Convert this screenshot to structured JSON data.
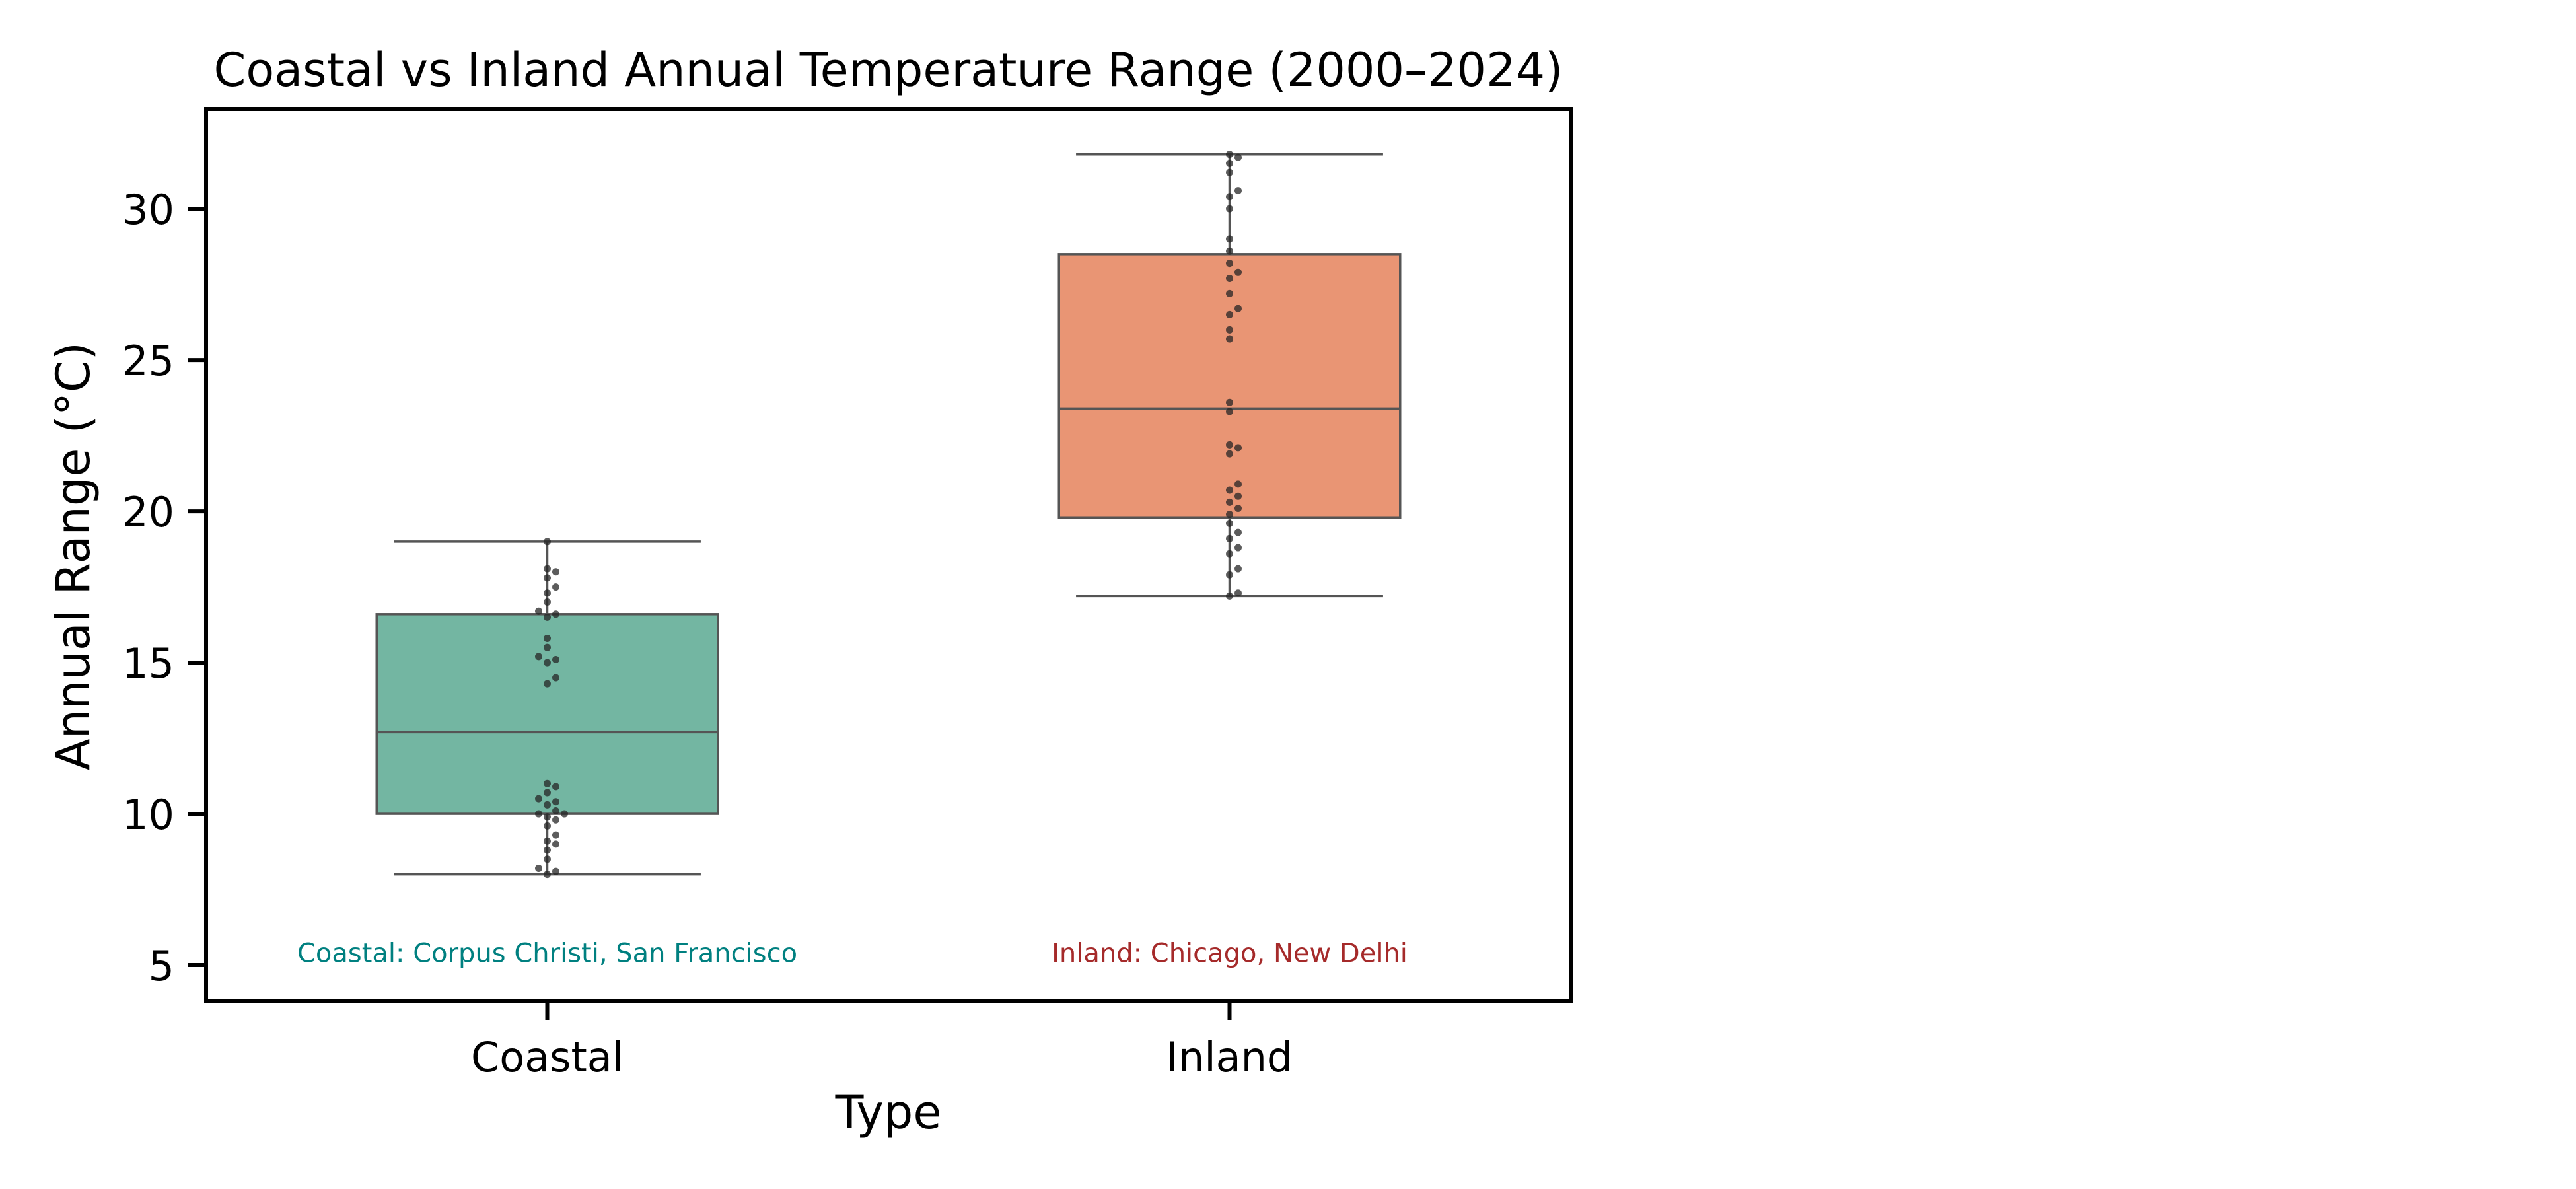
{
  "chart_data": {
    "type": "box",
    "title": "Coastal vs Inland Annual Temperature Range (2000–2024)",
    "xlabel": "Type",
    "ylabel": "Annual Range (°C)",
    "categories": [
      "Coastal",
      "Inland"
    ],
    "ylim": [
      3.8,
      33.3
    ],
    "yticks": [
      5,
      10,
      15,
      20,
      25,
      30
    ],
    "grid": false,
    "legend": "none",
    "boxes": [
      {
        "category": "Coastal",
        "color": "#73b6a2",
        "whisker_low": 8.0,
        "q1": 10.0,
        "median": 12.7,
        "q3": 16.6,
        "whisker_high": 19.0
      },
      {
        "category": "Inland",
        "color": "#e99574",
        "whisker_low": 17.2,
        "q1": 19.8,
        "median": 23.4,
        "q3": 28.5,
        "whisker_high": 31.8
      }
    ],
    "points": [
      {
        "category": "Coastal",
        "values": [
          8.0,
          8.1,
          8.2,
          8.5,
          8.8,
          9.0,
          9.1,
          9.3,
          9.6,
          9.8,
          9.9,
          10.0,
          10.0,
          10.1,
          10.3,
          10.4,
          10.5,
          10.7,
          10.9,
          11.0,
          14.3,
          14.5,
          15.0,
          15.1,
          15.2,
          15.5,
          15.8,
          16.5,
          16.6,
          16.7,
          17.0,
          17.3,
          17.5,
          17.8,
          18.0,
          18.1,
          19.0
        ]
      },
      {
        "category": "Inland",
        "values": [
          17.2,
          17.3,
          17.9,
          18.1,
          18.6,
          18.8,
          19.1,
          19.3,
          19.6,
          19.9,
          20.1,
          20.3,
          20.5,
          20.7,
          20.9,
          21.9,
          22.1,
          22.2,
          23.3,
          23.6,
          25.7,
          26.0,
          26.5,
          26.7,
          27.2,
          27.7,
          27.9,
          28.2,
          28.6,
          29.0,
          30.0,
          30.4,
          30.6,
          31.2,
          31.5,
          31.7,
          31.8
        ]
      }
    ],
    "annotations": [
      {
        "text": "Coastal: Corpus Christi, San Francisco",
        "category": "Coastal",
        "y": 5.4,
        "color": "#008080"
      },
      {
        "text": "Inland: Chicago, New Delhi",
        "category": "Inland",
        "y": 5.4,
        "color": "#a52a2a"
      }
    ]
  }
}
